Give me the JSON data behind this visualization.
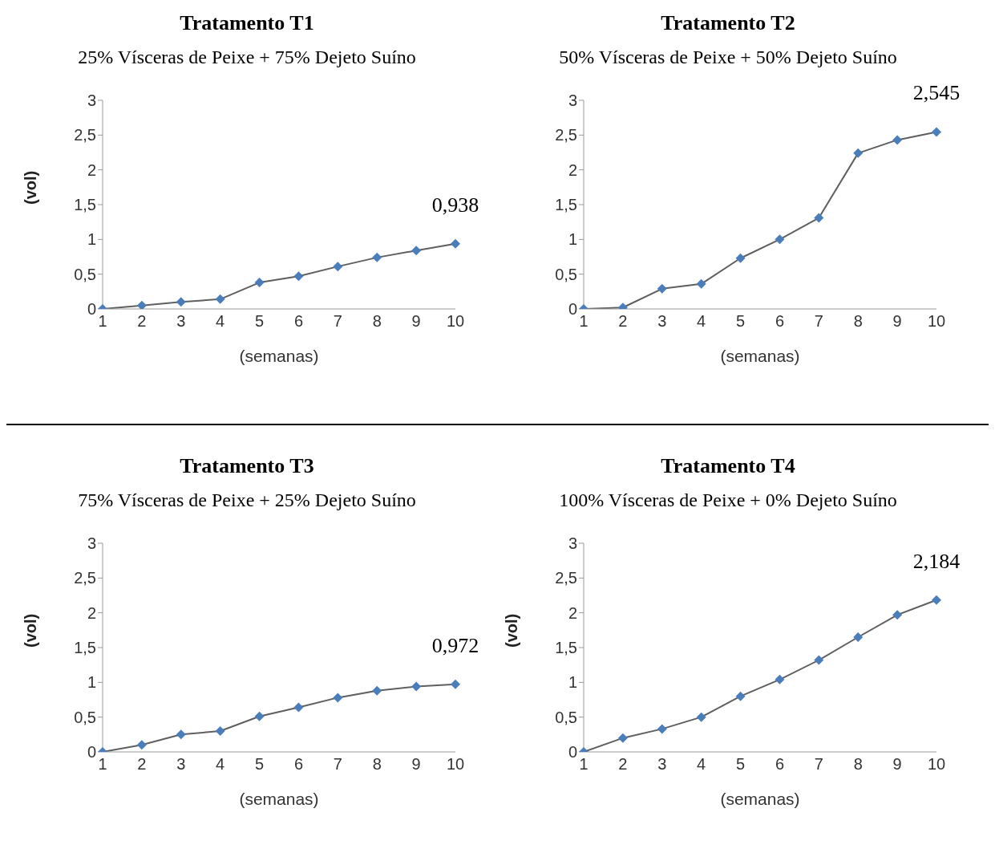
{
  "chart_data": [
    {
      "type": "line",
      "title": "Tratamento T1",
      "subtitle": "25% Vísceras de Peixe + 75% Dejeto Suíno",
      "xlabel": "(semanas)",
      "ylabel": "(vol)",
      "categories": [
        "1",
        "2",
        "3",
        "4",
        "5",
        "6",
        "7",
        "8",
        "9",
        "10"
      ],
      "series": [
        {
          "color": "#4a7ebb",
          "values": [
            0,
            0.05,
            0.1,
            0.14,
            0.38,
            0.47,
            0.61,
            0.74,
            0.84,
            0.938
          ]
        }
      ],
      "ylim": [
        0,
        3
      ],
      "yticks": [
        0,
        {
          "value": 0.5,
          "label": "0,5"
        },
        1,
        {
          "value": 1.5,
          "label": "1,5"
        },
        2,
        {
          "value": 2.5,
          "label": "2,5"
        },
        3
      ],
      "grid": false,
      "legend": false,
      "marker": "diamond",
      "line_style": "solid",
      "annotations": [
        {
          "text": "0,938",
          "x": "10",
          "y": 0.938
        }
      ]
    },
    {
      "type": "line",
      "title": "Tratamento T2",
      "subtitle": "50% Vísceras de Peixe + 50% Dejeto Suíno",
      "xlabel": "(semanas)",
      "categories": [
        "1",
        "2",
        "3",
        "4",
        "5",
        "6",
        "7",
        "8",
        "9",
        "10"
      ],
      "series": [
        {
          "color": "#4a7ebb",
          "values": [
            0,
            0.02,
            0.29,
            0.36,
            0.73,
            1.0,
            1.31,
            2.24,
            2.43,
            2.545
          ]
        }
      ],
      "ylim": [
        0,
        3
      ],
      "yticks": [
        0,
        {
          "value": 0.5,
          "label": "0,5"
        },
        1,
        {
          "value": 1.5,
          "label": "1,5"
        },
        2,
        {
          "value": 2.5,
          "label": "2,5"
        },
        3
      ],
      "grid": false,
      "legend": false,
      "marker": "diamond",
      "line_style": "solid",
      "annotations": [
        {
          "text": "2,545",
          "x": "10",
          "y": 2.545
        }
      ]
    },
    {
      "type": "line",
      "title": "Tratamento T3",
      "subtitle": "75% Vísceras de Peixe + 25% Dejeto Suíno",
      "xlabel": "(semanas)",
      "ylabel": "(vol)",
      "categories": [
        "1",
        "2",
        "3",
        "4",
        "5",
        "6",
        "7",
        "8",
        "9",
        "10"
      ],
      "series": [
        {
          "color": "#4a7ebb",
          "values": [
            0,
            0.1,
            0.25,
            0.3,
            0.51,
            0.64,
            0.78,
            0.88,
            0.94,
            0.972
          ]
        }
      ],
      "ylim": [
        0,
        3
      ],
      "yticks": [
        0,
        {
          "value": 0.5,
          "label": "0,5"
        },
        1,
        {
          "value": 1.5,
          "label": "1,5"
        },
        2,
        {
          "value": 2.5,
          "label": "2,5"
        },
        3
      ],
      "grid": false,
      "legend": false,
      "marker": "diamond",
      "line_style": "solid",
      "annotations": [
        {
          "text": "0,972",
          "x": "10",
          "y": 0.972
        }
      ]
    },
    {
      "type": "line",
      "title": "Tratamento T4",
      "subtitle": "100% Vísceras de Peixe + 0% Dejeto Suíno",
      "xlabel": "(semanas)",
      "ylabel": "(vol)",
      "categories": [
        "1",
        "2",
        "3",
        "4",
        "5",
        "6",
        "7",
        "8",
        "9",
        "10"
      ],
      "series": [
        {
          "color": "#4a7ebb",
          "values": [
            0,
            0.2,
            0.33,
            0.5,
            0.8,
            1.04,
            1.32,
            1.65,
            1.97,
            2.184
          ]
        }
      ],
      "ylim": [
        0,
        3
      ],
      "yticks": [
        0,
        {
          "value": 0.5,
          "label": "0,5"
        },
        1,
        {
          "value": 1.5,
          "label": "1,5"
        },
        2,
        {
          "value": 2.5,
          "label": "2,5"
        },
        3
      ],
      "grid": false,
      "legend": false,
      "marker": "diamond",
      "line_style": "solid",
      "annotations": [
        {
          "text": "2,184",
          "x": "10",
          "y": 2.184
        }
      ]
    }
  ]
}
